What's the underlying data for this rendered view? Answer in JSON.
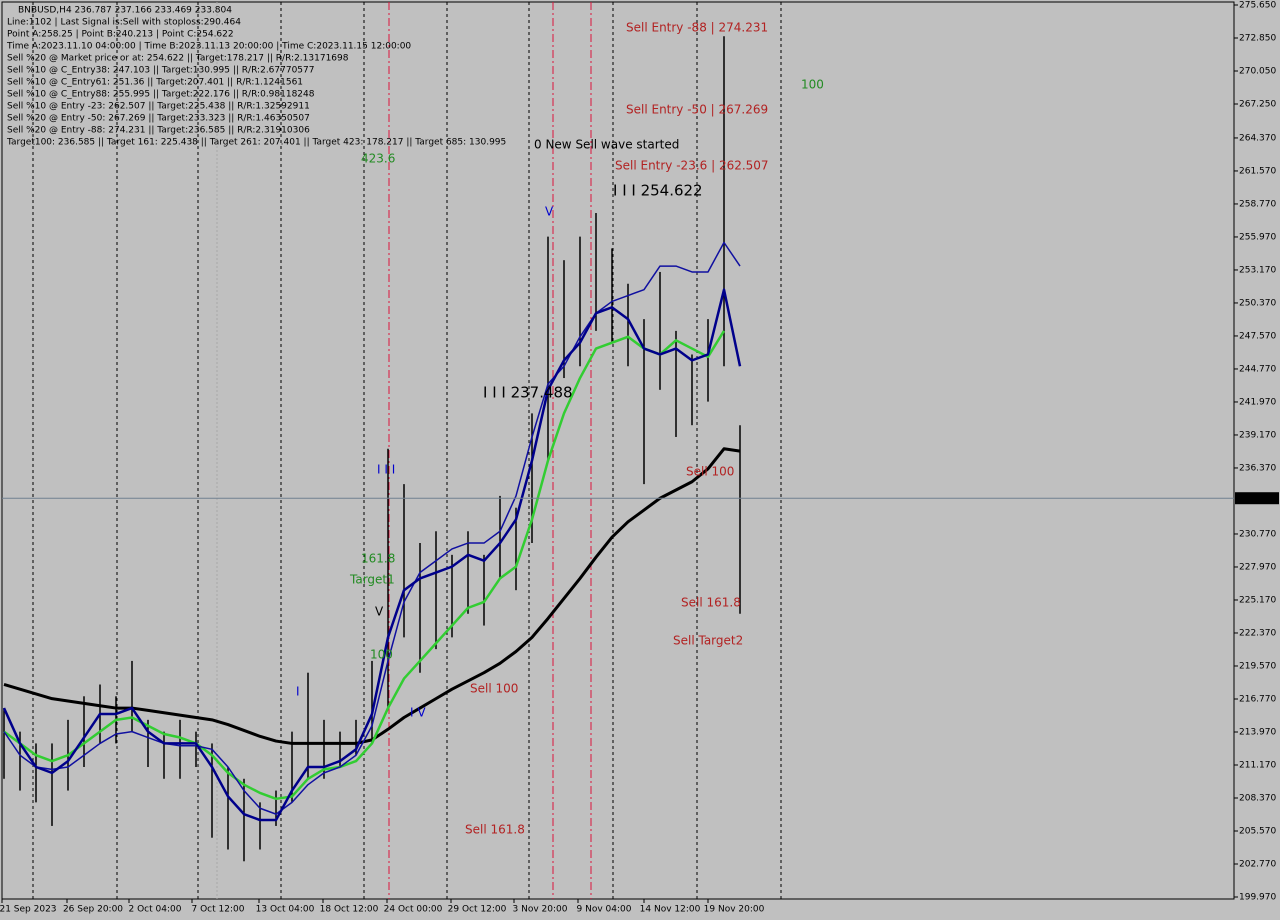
{
  "header_lines": [
    "BNBUSD,H4  236.787 237.166 233.469 233.804",
    "Line:1102 | Last Signal is:Sell with stoploss:290.464",
    "Point A:258.25 | Point B:240.213 | Point C:254.622",
    "Time A:2023.11.10 04:00:00 | Time B:2023.11.13 20:00:00 | Time C:2023.11.15 12:00:00",
    "Sell %20 @ Market price or at: 254.622 || Target:178.217 || R/R:2.13171698",
    "Sell %10 @ C_Entry38: 247.103 || Target:130.995 || R/R:2.67770577",
    "Sell %10 @ C_Entry61: 251.36 || Target:207.401 || R/R:1.1241561",
    "Sell %10 @ C_Entry88: 255.995 || Target:222.176 || R/R:0.98118248",
    "Sell %10 @ Entry -23: 262.507 || Target:225.438 || R/R:1.32592911",
    "Sell %20 @ Entry -50: 267.269 || Target:233.323 || R/R:1.46350507",
    "Sell %20 @ Entry -88: 274.231 || Target:236.585 || R/R:2.31910306",
    "Target100: 236.585 || Target 161: 225.438 || Target 261: 207.401 || Target 423: 178.217 || Target 685: 130.995"
  ],
  "chart_data": {
    "type": "ohlc",
    "high": [
      216,
      214,
      213,
      213,
      215,
      217,
      218,
      217,
      220,
      215,
      214,
      215,
      214,
      213,
      211,
      210,
      208,
      209,
      214,
      219,
      215,
      214,
      215,
      220,
      238,
      235,
      230,
      231,
      229,
      231,
      229,
      234,
      233,
      241,
      256,
      254,
      256,
      258,
      255,
      252,
      249,
      253,
      248,
      246,
      249,
      273,
      240
    ],
    "low": [
      210,
      209,
      208,
      206,
      209,
      211,
      213,
      213,
      214,
      211,
      210,
      210,
      211,
      205,
      204,
      203,
      204,
      206,
      208,
      210,
      210,
      211,
      212,
      213,
      216,
      222,
      219,
      221,
      222,
      224,
      223,
      227,
      226,
      230,
      237,
      244,
      245,
      248,
      247,
      245,
      235,
      243,
      239,
      240,
      242,
      245,
      224
    ],
    "bar_color": "#000000",
    "lines": [
      {
        "color": "#000000",
        "values": [
          218,
          217.6,
          217.2,
          216.8,
          216.6,
          216.4,
          216.2,
          216,
          216,
          215.8,
          215.6,
          215.4,
          215.2,
          215,
          214.6,
          214.1,
          213.6,
          213.2,
          213,
          213,
          213,
          213,
          213,
          213.3,
          214.2,
          215.2,
          216,
          216.8,
          217.6,
          218.3,
          219,
          219.8,
          220.8,
          222,
          223.6,
          225.3,
          227,
          228.8,
          230.5,
          231.8,
          232.8,
          233.8,
          234.5,
          235.2,
          236.3,
          238,
          237.8
        ]
      },
      {
        "color": "#32cd32",
        "values": [
          214,
          213,
          212,
          211.5,
          212,
          213,
          214,
          215,
          215.2,
          214.5,
          213.8,
          213.5,
          213,
          212,
          210.5,
          209.5,
          208.8,
          208.3,
          208.5,
          210,
          210.8,
          211,
          211.5,
          213,
          216,
          218.5,
          220,
          221.5,
          223,
          224.5,
          225,
          227,
          228,
          232,
          237,
          241,
          244,
          246.5,
          247,
          247.5,
          246.5,
          246,
          247.2,
          246.5,
          245.8,
          248,
          null
        ]
      },
      {
        "color": "#1010a0",
        "values": [
          214,
          212,
          211,
          210.8,
          211,
          212,
          213,
          213.8,
          214,
          213.5,
          213,
          212.8,
          212.8,
          212.5,
          211,
          209,
          207.5,
          207,
          208,
          209.5,
          210.5,
          211,
          212,
          214.5,
          220,
          225,
          227.5,
          228.5,
          229.5,
          230,
          230,
          231,
          234,
          239,
          243.5,
          245,
          247.5,
          249.5,
          250.5,
          251,
          251.5,
          253.5,
          253.5,
          253,
          253,
          255.5,
          253.5
        ]
      },
      {
        "color": "#00008b",
        "values": [
          216,
          213,
          211,
          210.5,
          211.5,
          213.5,
          215.5,
          215.5,
          216,
          214,
          213,
          213,
          213,
          211,
          208.5,
          207,
          206.5,
          206.5,
          209,
          211,
          211,
          211.5,
          212.5,
          215.5,
          222,
          226,
          227,
          227.5,
          228,
          229,
          228.5,
          230,
          232,
          237,
          243,
          245.5,
          247,
          249.5,
          250,
          249,
          246.5,
          246,
          246.5,
          245.5,
          246,
          251.5,
          245
        ]
      }
    ],
    "ylim": [
      199.97,
      275.65
    ],
    "yticks": [
      {
        "value": 275.65,
        "label": "275.650"
      },
      {
        "value": 272.85,
        "label": "272.850"
      },
      {
        "value": 270.05,
        "label": "270.050"
      },
      {
        "value": 267.25,
        "label": "267.250"
      },
      {
        "value": 264.37,
        "label": "264.370"
      },
      {
        "value": 261.57,
        "label": "261.570"
      },
      {
        "value": 258.77,
        "label": "258.770"
      },
      {
        "value": 255.97,
        "label": "255.970"
      },
      {
        "value": 253.17,
        "label": "253.170"
      },
      {
        "value": 250.37,
        "label": "250.370"
      },
      {
        "value": 247.57,
        "label": "247.570"
      },
      {
        "value": 244.77,
        "label": "244.770"
      },
      {
        "value": 241.97,
        "label": "241.970"
      },
      {
        "value": 239.17,
        "label": "239.170"
      },
      {
        "value": 236.37,
        "label": "236.370"
      },
      {
        "value": 230.77,
        "label": "230.770"
      },
      {
        "value": 227.97,
        "label": "227.970"
      },
      {
        "value": 225.17,
        "label": "225.170"
      },
      {
        "value": 222.37,
        "label": "222.370"
      },
      {
        "value": 219.57,
        "label": "219.570"
      },
      {
        "value": 216.77,
        "label": "216.770"
      },
      {
        "value": 213.97,
        "label": "213.970"
      },
      {
        "value": 211.17,
        "label": "211.170"
      },
      {
        "value": 208.37,
        "label": "208.370"
      },
      {
        "value": 205.57,
        "label": "205.570"
      },
      {
        "value": 202.77,
        "label": "202.770"
      },
      {
        "value": 199.97,
        "label": "199.970"
      }
    ],
    "current_price": 233.804,
    "time_labels": [
      "21 Sep 2023",
      "26 Sep 20:00",
      "2 Oct 04:00",
      "7 Oct 12:00",
      "13 Oct 04:00",
      "18 Oct 12:00",
      "24 Oct 00:00",
      "29 Oct 12:00",
      "3 Nov 20:00",
      "9 Nov 04:00",
      "14 Nov 12:00",
      "19 Nov 20:00"
    ],
    "annotations": [
      {
        "text": "Sell Entry -88 | 274.231",
        "color": "#b22222"
      },
      {
        "text": "100",
        "color": "#228b22"
      },
      {
        "text": "Sell Entry -50 | 267.269",
        "color": "#b22222"
      },
      {
        "text": "0 New Sell wave started",
        "color": "#000000"
      },
      {
        "text": "Sell Entry -23.6 | 262.507",
        "color": "#b22222"
      },
      {
        "text": "I I I 254.622",
        "color": "#000000"
      },
      {
        "text": "423.6",
        "color": "#228b22"
      },
      {
        "text": "V",
        "color": "#0000cd"
      },
      {
        "text": "I I I 237.488",
        "color": "#000000"
      },
      {
        "text": "I I I",
        "color": "#0000cd"
      },
      {
        "text": "Sell 100",
        "color": "#b22222"
      },
      {
        "text": "161.8",
        "color": "#228b22"
      },
      {
        "text": "Target1",
        "color": "#228b22"
      },
      {
        "text": "V",
        "color": "#000000"
      },
      {
        "text": "Sell 161.8",
        "color": "#b22222"
      },
      {
        "text": "Sell Target2",
        "color": "#b22222"
      },
      {
        "text": "100",
        "color": "#228b22"
      },
      {
        "text": "Sell 100",
        "color": "#b22222"
      },
      {
        "text": "I",
        "color": "#0000cd"
      },
      {
        "text": "I V",
        "color": "#0000cd"
      },
      {
        "text": "Sell 161.8",
        "color": "#b22222"
      }
    ]
  }
}
